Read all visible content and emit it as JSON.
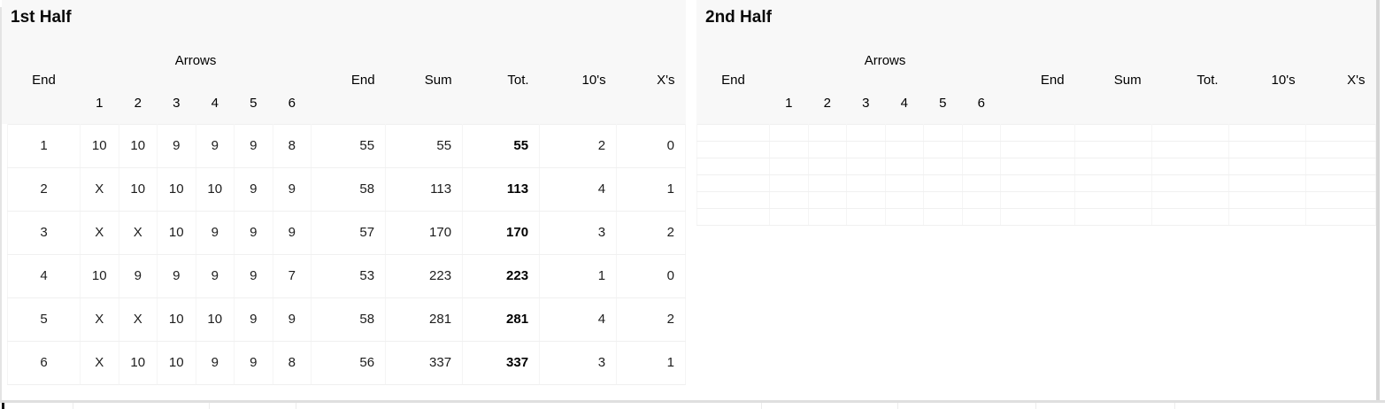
{
  "colors": {
    "header_bg": "#f8f8f8",
    "grid_h": "#f0f0f0",
    "grid_v": "#f5f5f5",
    "divider": "#dfdfdf",
    "scrollbar": "#d6d6d6"
  },
  "first_half": {
    "title": "1st Half",
    "headers": {
      "end": "End",
      "arrows": "Arrows",
      "arrow_cols": [
        "1",
        "2",
        "3",
        "4",
        "5",
        "6"
      ],
      "end_total": "End",
      "sum": "Sum",
      "total": "Tot.",
      "tens": "10's",
      "xs": "X's"
    },
    "rows": [
      {
        "end": "1",
        "arrows": [
          "10",
          "10",
          "9",
          "9",
          "9",
          "8"
        ],
        "end_total": "55",
        "sum": "55",
        "total": "55",
        "tens": "2",
        "xs": "0"
      },
      {
        "end": "2",
        "arrows": [
          "X",
          "10",
          "10",
          "10",
          "9",
          "9"
        ],
        "end_total": "58",
        "sum": "113",
        "total": "113",
        "tens": "4",
        "xs": "1"
      },
      {
        "end": "3",
        "arrows": [
          "X",
          "X",
          "10",
          "9",
          "9",
          "9"
        ],
        "end_total": "57",
        "sum": "170",
        "total": "170",
        "tens": "3",
        "xs": "2"
      },
      {
        "end": "4",
        "arrows": [
          "10",
          "9",
          "9",
          "9",
          "9",
          "7"
        ],
        "end_total": "53",
        "sum": "223",
        "total": "223",
        "tens": "1",
        "xs": "0"
      },
      {
        "end": "5",
        "arrows": [
          "X",
          "X",
          "10",
          "10",
          "9",
          "9"
        ],
        "end_total": "58",
        "sum": "281",
        "total": "281",
        "tens": "4",
        "xs": "2"
      },
      {
        "end": "6",
        "arrows": [
          "X",
          "10",
          "10",
          "9",
          "9",
          "8"
        ],
        "end_total": "56",
        "sum": "337",
        "total": "337",
        "tens": "3",
        "xs": "1"
      }
    ]
  },
  "second_half": {
    "title": "2nd Half",
    "headers": {
      "end": "End",
      "arrows": "Arrows",
      "arrow_cols": [
        "1",
        "2",
        "3",
        "4",
        "5",
        "6"
      ],
      "end_total": "End",
      "sum": "Sum",
      "total": "Tot.",
      "tens": "10's",
      "xs": "X's"
    },
    "rows": [
      {
        "end": "",
        "arrows": [
          "",
          "",
          "",
          "",
          "",
          ""
        ],
        "end_total": "",
        "sum": "",
        "total": "",
        "tens": "",
        "xs": ""
      },
      {
        "end": "",
        "arrows": [
          "",
          "",
          "",
          "",
          "",
          ""
        ],
        "end_total": "",
        "sum": "",
        "total": "",
        "tens": "",
        "xs": ""
      },
      {
        "end": "",
        "arrows": [
          "",
          "",
          "",
          "",
          "",
          ""
        ],
        "end_total": "",
        "sum": "",
        "total": "",
        "tens": "",
        "xs": ""
      },
      {
        "end": "",
        "arrows": [
          "",
          "",
          "",
          "",
          "",
          ""
        ],
        "end_total": "",
        "sum": "",
        "total": "",
        "tens": "",
        "xs": ""
      },
      {
        "end": "",
        "arrows": [
          "",
          "",
          "",
          "",
          "",
          ""
        ],
        "end_total": "",
        "sum": "",
        "total": "",
        "tens": "",
        "xs": ""
      },
      {
        "end": "",
        "arrows": [
          "",
          "",
          "",
          "",
          "",
          ""
        ],
        "end_total": "",
        "sum": "",
        "total": "",
        "tens": "",
        "xs": ""
      }
    ]
  }
}
